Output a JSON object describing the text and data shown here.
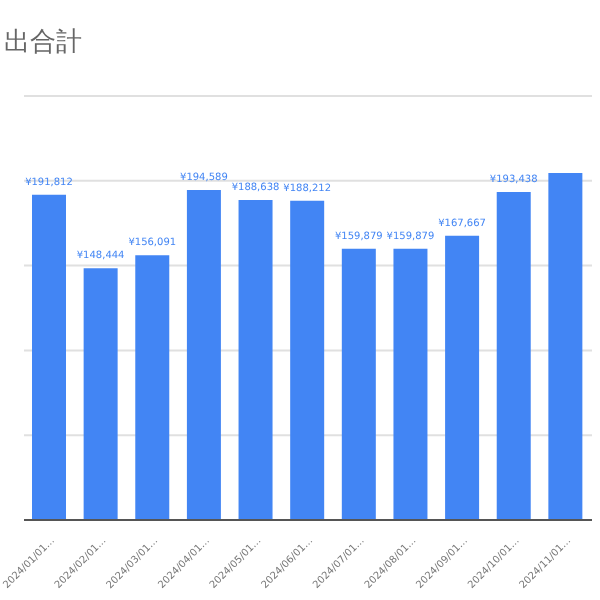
{
  "chart_data": {
    "type": "bar",
    "title": "出合計",
    "categories": [
      "2024/01/01…",
      "2024/02/01…",
      "2024/03/01…",
      "2024/04/01…",
      "2024/05/01…",
      "2024/06/01…",
      "2024/07/01…",
      "2024/08/01…",
      "2024/09/01…",
      "2024/10/01…",
      "2024/11/01…"
    ],
    "values": [
      191812,
      148444,
      156091,
      194589,
      188638,
      188212,
      159879,
      159879,
      167667,
      193438,
      204600
    ],
    "value_labels": [
      "¥191,812",
      "¥148,444",
      "¥156,091",
      "¥194,589",
      "¥188,638",
      "¥188,212",
      "¥159,879",
      "¥159,879",
      "¥167,667",
      "¥193,438",
      null
    ],
    "color": "#4285f4",
    "ylim": [
      0,
      250000
    ],
    "yticks": [
      {
        "value": 0,
        "label": null
      },
      {
        "value": 50000,
        "label": null
      },
      {
        "value": 100000,
        "label": null
      },
      {
        "value": 150000,
        "label": null
      },
      {
        "value": 200000,
        "label": null
      },
      {
        "value": 250000,
        "label": null
      }
    ],
    "grid": "y",
    "tick_labels": "x"
  }
}
